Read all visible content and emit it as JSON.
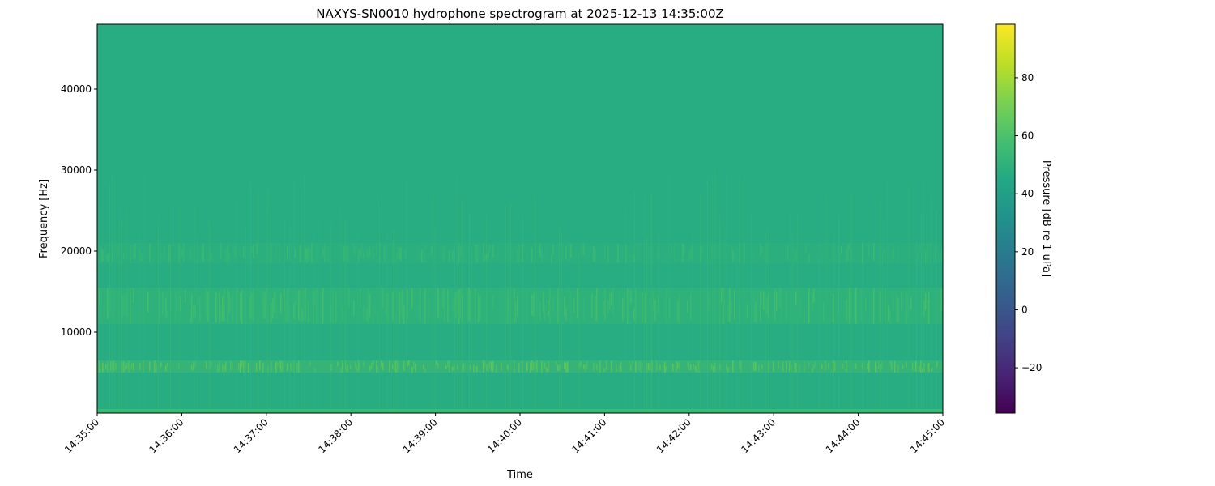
{
  "chart_data": {
    "type": "heatmap",
    "title": "NAXYS-SN0010 hydrophone spectrogram at 2025-12-13 14:35:00Z",
    "xlabel": "Time",
    "ylabel": "Frequency [Hz]",
    "x_range": [
      "14:35:00",
      "14:45:00"
    ],
    "x_ticks": [
      "14:35:00",
      "14:36:00",
      "14:37:00",
      "14:38:00",
      "14:39:00",
      "14:40:00",
      "14:41:00",
      "14:42:00",
      "14:43:00",
      "14:44:00",
      "14:45:00"
    ],
    "y_range": [
      0,
      48000
    ],
    "y_ticks": [
      10000,
      20000,
      30000,
      40000
    ],
    "colormap": "viridis",
    "colorbar": {
      "label": "Pressure [dB re 1 uPa]",
      "range": [
        -35.6,
        98.4
      ],
      "ticks": [
        -20,
        0,
        20,
        40,
        60,
        80
      ]
    },
    "background_level_db": 47,
    "features": [
      {
        "freq_hz": [
          0,
          500
        ],
        "level_db": 56
      },
      {
        "freq_hz": [
          5000,
          6500
        ],
        "level_db": 66
      },
      {
        "freq_hz": [
          11000,
          15500
        ],
        "level_db": 58
      },
      {
        "freq_hz": [
          18500,
          21000
        ],
        "level_db": 54
      }
    ],
    "grid": false
  }
}
